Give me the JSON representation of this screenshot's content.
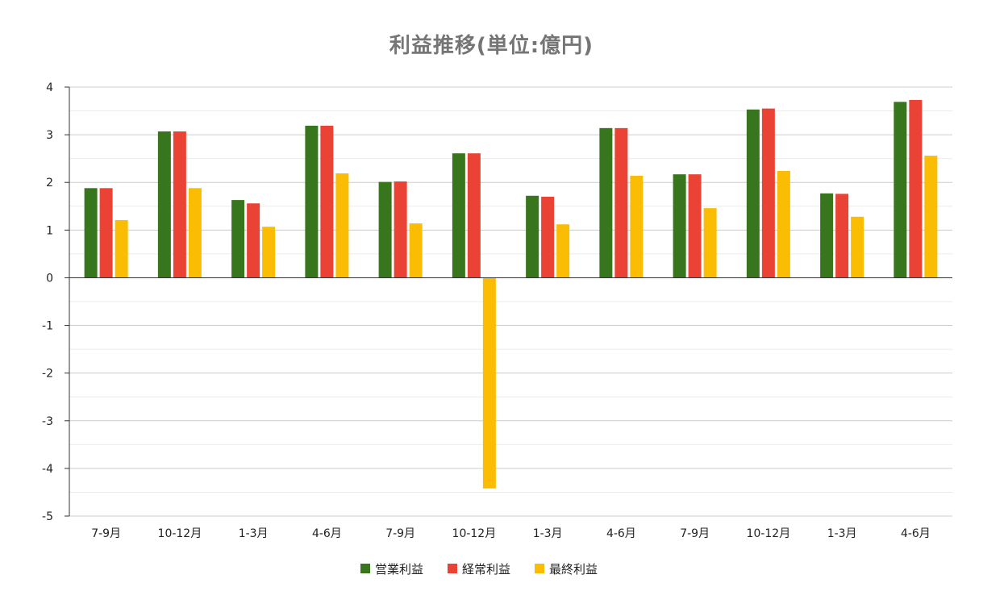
{
  "chart_data": {
    "type": "bar",
    "title": "利益推移(単位:億円)",
    "xlabel": "",
    "ylabel": "",
    "ylim": [
      -5,
      4
    ],
    "yticks": [
      4,
      3,
      2,
      1,
      0,
      -1,
      -2,
      -3,
      -4,
      -5
    ],
    "grid": true,
    "legend_position": "bottom",
    "categories": [
      "7-9月",
      "10-12月",
      "1-3月",
      "4-6月",
      "7-9月",
      "10-12月",
      "1-3月",
      "4-6月",
      "7-9月",
      "10-12月",
      "1-3月",
      "4-6月"
    ],
    "series": [
      {
        "name": "営業利益",
        "color": "#38761d",
        "values": [
          1.88,
          3.07,
          1.63,
          3.19,
          2.01,
          2.61,
          1.72,
          3.14,
          2.17,
          3.53,
          1.77,
          3.69
        ]
      },
      {
        "name": "経常利益",
        "color": "#ea4335",
        "values": [
          1.88,
          3.07,
          1.56,
          3.19,
          2.02,
          2.61,
          1.7,
          3.14,
          2.17,
          3.55,
          1.76,
          3.73
        ]
      },
      {
        "name": "最終利益",
        "color": "#fbbc04",
        "values": [
          1.21,
          1.88,
          1.07,
          2.19,
          1.14,
          -4.42,
          1.12,
          2.14,
          1.46,
          2.24,
          1.28,
          2.56
        ]
      }
    ]
  }
}
